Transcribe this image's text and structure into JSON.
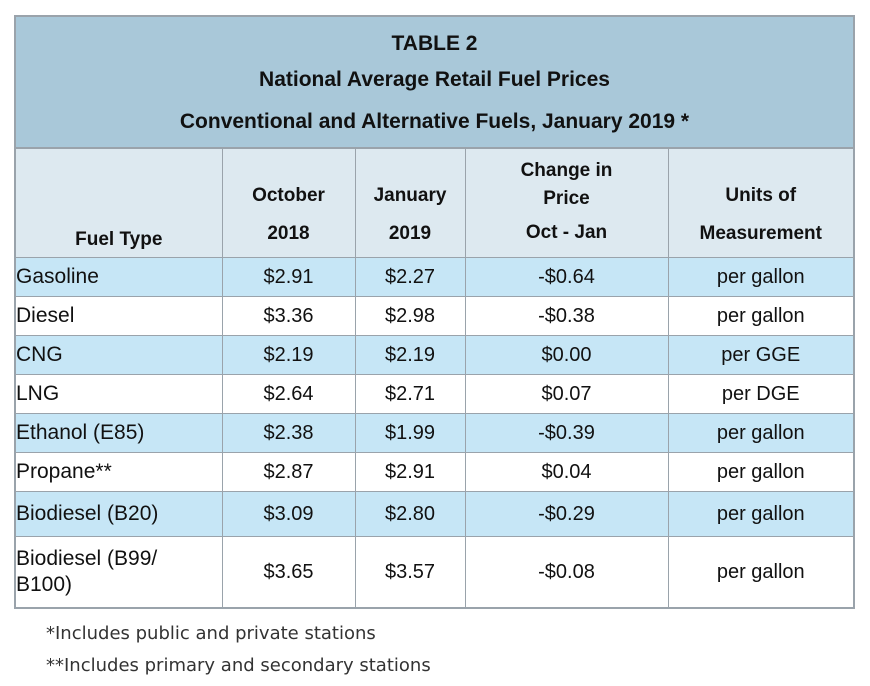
{
  "title": {
    "line1": "TABLE 2",
    "line2": "National Average Retail Fuel Prices",
    "line3": "Conventional and Alternative Fuels, January 2019 *"
  },
  "columns": {
    "fuel_type": "Fuel Type",
    "october": [
      "October",
      "2018"
    ],
    "january": [
      "January",
      "2019"
    ],
    "change": [
      "Change in",
      "Price",
      "Oct - Jan"
    ],
    "units": [
      "Units of",
      "Measurement"
    ]
  },
  "rows": [
    {
      "fuel": "Gasoline",
      "oct": "$2.91",
      "jan": "$2.27",
      "change": "-$0.64",
      "unit": "per gallon"
    },
    {
      "fuel": "Diesel",
      "oct": "$3.36",
      "jan": "$2.98",
      "change": "-$0.38",
      "unit": "per gallon"
    },
    {
      "fuel": "CNG",
      "oct": "$2.19",
      "jan": "$2.19",
      "change": "$0.00",
      "unit": "per GGE"
    },
    {
      "fuel": "LNG",
      "oct": "$2.64",
      "jan": "$2.71",
      "change": "$0.07",
      "unit": "per DGE"
    },
    {
      "fuel": "Ethanol (E85)",
      "oct": "$2.38",
      "jan": "$1.99",
      "change": "-$0.39",
      "unit": "per gallon"
    },
    {
      "fuel": "Propane**",
      "oct": "$2.87",
      "jan": "$2.91",
      "change": "$0.04",
      "unit": "per gallon"
    },
    {
      "fuel": "Biodiesel (B20)",
      "oct": "$3.09",
      "jan": "$2.80",
      "change": "-$0.29",
      "unit": "per gallon"
    },
    {
      "fuel_lines": [
        "Biodiesel (B99/",
        "B100)"
      ],
      "oct": "$3.65",
      "jan": "$3.57",
      "change": "-$0.08",
      "unit": "per gallon"
    }
  ],
  "footnotes": [
    "*Includes public and private stations",
    "**Includes primary and secondary stations"
  ]
}
